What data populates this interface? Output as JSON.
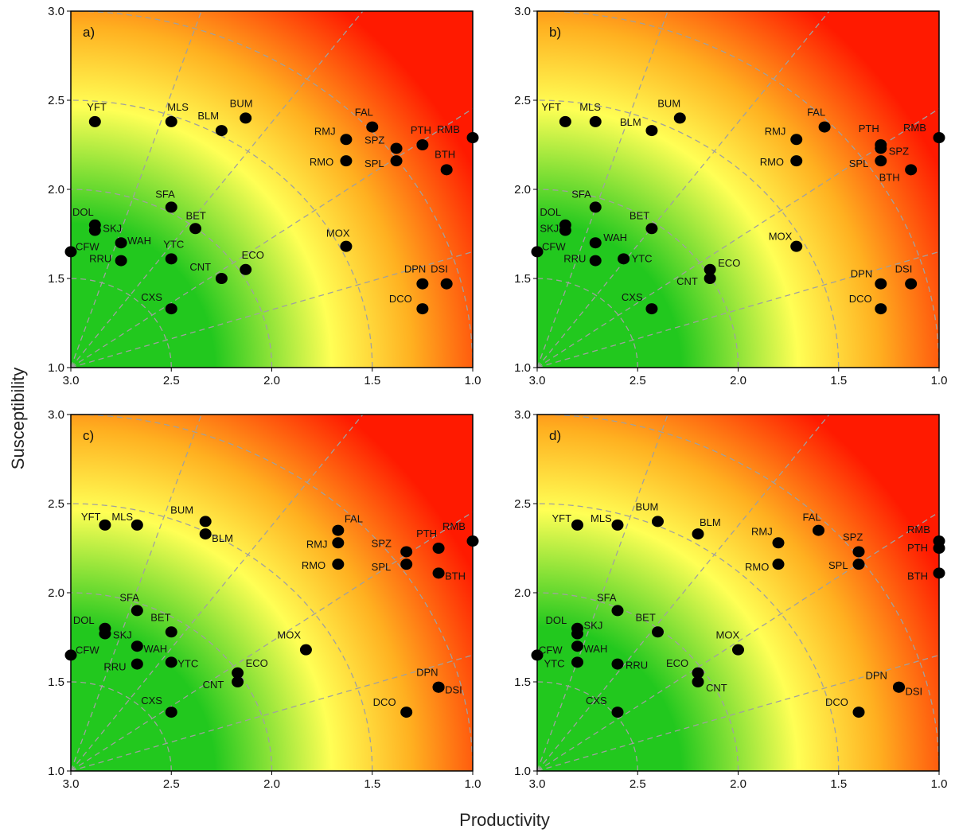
{
  "figure": {
    "ylabel": "Susceptibility",
    "xlabel": "Productivity",
    "colors": {
      "low_risk": "#22c81e",
      "mid_risk": "#ffff55",
      "high_risk": "#ff1a00",
      "point": "#000000",
      "grid": "#a0a0a0"
    }
  },
  "chart_data": [
    {
      "type": "scatter",
      "panel_label": "a)",
      "xlim": [
        3.0,
        1.0
      ],
      "ylim": [
        1.0,
        3.0
      ],
      "xticks": [
        "3.0",
        "2.5",
        "2.0",
        "1.5",
        "1.0"
      ],
      "yticks": [
        "1.0",
        "1.5",
        "2.0",
        "2.5",
        "3.0"
      ],
      "points": [
        {
          "label": "YFT",
          "x": 2.88,
          "y": 2.38
        },
        {
          "label": "MLS",
          "x": 2.5,
          "y": 2.38
        },
        {
          "label": "BLM",
          "x": 2.25,
          "y": 2.33
        },
        {
          "label": "BUM",
          "x": 2.13,
          "y": 2.4
        },
        {
          "label": "FAL",
          "x": 1.5,
          "y": 2.35
        },
        {
          "label": "RMJ",
          "x": 1.63,
          "y": 2.28
        },
        {
          "label": "RMO",
          "x": 1.63,
          "y": 2.16
        },
        {
          "label": "SPZ",
          "x": 1.38,
          "y": 2.23
        },
        {
          "label": "SPL",
          "x": 1.38,
          "y": 2.16
        },
        {
          "label": "PTH",
          "x": 1.25,
          "y": 2.25
        },
        {
          "label": "RMB",
          "x": 1.0,
          "y": 2.29
        },
        {
          "label": "BTH",
          "x": 1.13,
          "y": 2.11
        },
        {
          "label": "SFA",
          "x": 2.5,
          "y": 1.9
        },
        {
          "label": "DOL",
          "x": 2.88,
          "y": 1.8
        },
        {
          "label": "SKJ",
          "x": 2.88,
          "y": 1.77
        },
        {
          "label": "BET",
          "x": 2.38,
          "y": 1.78
        },
        {
          "label": "CFW",
          "x": 3.0,
          "y": 1.65
        },
        {
          "label": "WAH",
          "x": 2.75,
          "y": 1.7
        },
        {
          "label": "RRU",
          "x": 2.75,
          "y": 1.6
        },
        {
          "label": "YTC",
          "x": 2.5,
          "y": 1.61
        },
        {
          "label": "CNT",
          "x": 2.25,
          "y": 1.5
        },
        {
          "label": "ECO",
          "x": 2.13,
          "y": 1.55
        },
        {
          "label": "MOX",
          "x": 1.63,
          "y": 1.68
        },
        {
          "label": "DPN",
          "x": 1.25,
          "y": 1.47
        },
        {
          "label": "DSI",
          "x": 1.13,
          "y": 1.47
        },
        {
          "label": "DCO",
          "x": 1.25,
          "y": 1.33
        },
        {
          "label": "CXS",
          "x": 2.5,
          "y": 1.33
        }
      ]
    },
    {
      "type": "scatter",
      "panel_label": "b)",
      "xlim": [
        3.0,
        1.0
      ],
      "ylim": [
        1.0,
        3.0
      ],
      "xticks": [
        "3.0",
        "2.5",
        "2.0",
        "1.5",
        "1.0"
      ],
      "yticks": [
        "1.0",
        "1.5",
        "2.0",
        "2.5",
        "3.0"
      ],
      "points": [
        {
          "label": "YFT",
          "x": 2.86,
          "y": 2.38
        },
        {
          "label": "MLS",
          "x": 2.71,
          "y": 2.38
        },
        {
          "label": "BLM",
          "x": 2.43,
          "y": 2.33
        },
        {
          "label": "BUM",
          "x": 2.29,
          "y": 2.4
        },
        {
          "label": "FAL",
          "x": 1.57,
          "y": 2.35
        },
        {
          "label": "RMJ",
          "x": 1.71,
          "y": 2.28
        },
        {
          "label": "RMO",
          "x": 1.71,
          "y": 2.16
        },
        {
          "label": "PTH",
          "x": 1.29,
          "y": 2.25
        },
        {
          "label": "SPZ",
          "x": 1.29,
          "y": 2.23
        },
        {
          "label": "SPL",
          "x": 1.29,
          "y": 2.16
        },
        {
          "label": "BTH",
          "x": 1.14,
          "y": 2.11
        },
        {
          "label": "RMB",
          "x": 1.0,
          "y": 2.29
        },
        {
          "label": "SFA",
          "x": 2.71,
          "y": 1.9
        },
        {
          "label": "DOL",
          "x": 2.86,
          "y": 1.8
        },
        {
          "label": "SKJ",
          "x": 2.86,
          "y": 1.77
        },
        {
          "label": "BET",
          "x": 2.43,
          "y": 1.78
        },
        {
          "label": "CFW",
          "x": 3.0,
          "y": 1.65
        },
        {
          "label": "WAH",
          "x": 2.71,
          "y": 1.7
        },
        {
          "label": "RRU",
          "x": 2.71,
          "y": 1.6
        },
        {
          "label": "YTC",
          "x": 2.57,
          "y": 1.61
        },
        {
          "label": "ECO",
          "x": 2.14,
          "y": 1.55
        },
        {
          "label": "CNT",
          "x": 2.14,
          "y": 1.5
        },
        {
          "label": "MOX",
          "x": 1.71,
          "y": 1.68
        },
        {
          "label": "DPN",
          "x": 1.29,
          "y": 1.47
        },
        {
          "label": "DSI",
          "x": 1.14,
          "y": 1.47
        },
        {
          "label": "DCO",
          "x": 1.29,
          "y": 1.33
        },
        {
          "label": "CXS",
          "x": 2.43,
          "y": 1.33
        }
      ]
    },
    {
      "type": "scatter",
      "panel_label": "c)",
      "xlim": [
        3.0,
        1.0
      ],
      "ylim": [
        1.0,
        3.0
      ],
      "xticks": [
        "3.0",
        "2.5",
        "2.0",
        "1.5",
        "1.0"
      ],
      "yticks": [
        "1.0",
        "1.5",
        "2.0",
        "2.5",
        "3.0"
      ],
      "points": [
        {
          "label": "YFT",
          "x": 2.83,
          "y": 2.38
        },
        {
          "label": "MLS",
          "x": 2.67,
          "y": 2.38
        },
        {
          "label": "BUM",
          "x": 2.33,
          "y": 2.4
        },
        {
          "label": "BLM",
          "x": 2.33,
          "y": 2.33
        },
        {
          "label": "FAL",
          "x": 1.67,
          "y": 2.35
        },
        {
          "label": "RMJ",
          "x": 1.67,
          "y": 2.28
        },
        {
          "label": "RMO",
          "x": 1.67,
          "y": 2.16
        },
        {
          "label": "SPZ",
          "x": 1.33,
          "y": 2.23
        },
        {
          "label": "SPL",
          "x": 1.33,
          "y": 2.16
        },
        {
          "label": "PTH",
          "x": 1.17,
          "y": 2.25
        },
        {
          "label": "RMB",
          "x": 1.0,
          "y": 2.29
        },
        {
          "label": "BTH",
          "x": 1.17,
          "y": 2.11
        },
        {
          "label": "SFA",
          "x": 2.67,
          "y": 1.9
        },
        {
          "label": "DOL",
          "x": 2.83,
          "y": 1.8
        },
        {
          "label": "SKJ",
          "x": 2.83,
          "y": 1.77
        },
        {
          "label": "BET",
          "x": 2.5,
          "y": 1.78
        },
        {
          "label": "CFW",
          "x": 3.0,
          "y": 1.65
        },
        {
          "label": "WAH",
          "x": 2.67,
          "y": 1.7
        },
        {
          "label": "RRU",
          "x": 2.67,
          "y": 1.6
        },
        {
          "label": "YTC",
          "x": 2.5,
          "y": 1.61
        },
        {
          "label": "ECO",
          "x": 2.17,
          "y": 1.55
        },
        {
          "label": "CNT",
          "x": 2.17,
          "y": 1.5
        },
        {
          "label": "MOX",
          "x": 1.83,
          "y": 1.68
        },
        {
          "label": "DPN",
          "x": 1.17,
          "y": 1.47
        },
        {
          "label": "DSI",
          "x": 1.17,
          "y": 1.47
        },
        {
          "label": "DCO",
          "x": 1.33,
          "y": 1.33
        },
        {
          "label": "CXS",
          "x": 2.5,
          "y": 1.33
        }
      ]
    },
    {
      "type": "scatter",
      "panel_label": "d)",
      "xlim": [
        3.0,
        1.0
      ],
      "ylim": [
        1.0,
        3.0
      ],
      "xticks": [
        "3.0",
        "2.5",
        "2.0",
        "1.5",
        "1.0"
      ],
      "yticks": [
        "1.0",
        "1.5",
        "2.0",
        "2.5",
        "3.0"
      ],
      "points": [
        {
          "label": "YFT",
          "x": 2.8,
          "y": 2.38
        },
        {
          "label": "MLS",
          "x": 2.6,
          "y": 2.38
        },
        {
          "label": "BUM",
          "x": 2.4,
          "y": 2.4
        },
        {
          "label": "BLM",
          "x": 2.2,
          "y": 2.33
        },
        {
          "label": "FAL",
          "x": 1.6,
          "y": 2.35
        },
        {
          "label": "RMJ",
          "x": 1.8,
          "y": 2.28
        },
        {
          "label": "RMO",
          "x": 1.8,
          "y": 2.16
        },
        {
          "label": "SPZ",
          "x": 1.4,
          "y": 2.23
        },
        {
          "label": "SPL",
          "x": 1.4,
          "y": 2.16
        },
        {
          "label": "RMB",
          "x": 1.0,
          "y": 2.29
        },
        {
          "label": "PTH",
          "x": 1.0,
          "y": 2.25
        },
        {
          "label": "BTH",
          "x": 1.0,
          "y": 2.11
        },
        {
          "label": "SFA",
          "x": 2.6,
          "y": 1.9
        },
        {
          "label": "DOL",
          "x": 2.8,
          "y": 1.8
        },
        {
          "label": "SKJ",
          "x": 2.8,
          "y": 1.77
        },
        {
          "label": "BET",
          "x": 2.4,
          "y": 1.78
        },
        {
          "label": "CFW",
          "x": 3.0,
          "y": 1.65
        },
        {
          "label": "WAH",
          "x": 2.8,
          "y": 1.7
        },
        {
          "label": "RRU",
          "x": 2.6,
          "y": 1.6
        },
        {
          "label": "YTC",
          "x": 2.8,
          "y": 1.61
        },
        {
          "label": "ECO",
          "x": 2.2,
          "y": 1.55
        },
        {
          "label": "CNT",
          "x": 2.2,
          "y": 1.5
        },
        {
          "label": "MOX",
          "x": 2.0,
          "y": 1.68
        },
        {
          "label": "DPN",
          "x": 1.2,
          "y": 1.47
        },
        {
          "label": "DSI",
          "x": 1.2,
          "y": 1.47
        },
        {
          "label": "DCO",
          "x": 1.4,
          "y": 1.33
        },
        {
          "label": "CXS",
          "x": 2.6,
          "y": 1.33
        }
      ]
    }
  ]
}
